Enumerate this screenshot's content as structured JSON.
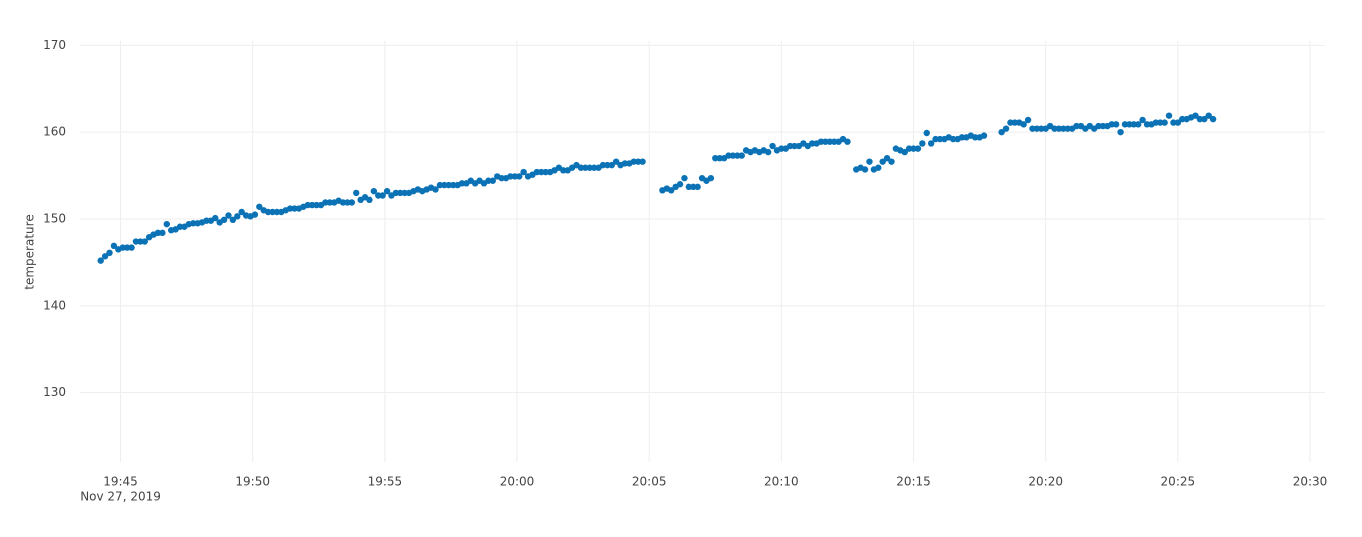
{
  "chart_data": {
    "type": "scatter",
    "y_label": "temperature",
    "x_date_label": "Nov 27, 2019",
    "xlim": [
      "19:43:28",
      "20:30:34"
    ],
    "xticks": [
      "19:45",
      "19:50",
      "19:55",
      "20:00",
      "20:05",
      "20:10",
      "20:15",
      "20:20",
      "20:25",
      "20:30"
    ],
    "ylim": [
      122,
      170.5
    ],
    "yticks": [
      130,
      140,
      150,
      160,
      170
    ],
    "grid": true,
    "color": "#0b72b5",
    "x": [
      "19:44:15",
      "19:44:25",
      "19:44:35",
      "19:44:45",
      "19:44:55",
      "19:45:05",
      "19:45:15",
      "19:45:25",
      "19:45:35",
      "19:45:45",
      "19:45:55",
      "19:46:05",
      "19:46:15",
      "19:46:25",
      "19:46:35",
      "19:46:45",
      "19:46:55",
      "19:47:05",
      "19:47:15",
      "19:47:25",
      "19:47:35",
      "19:47:45",
      "19:47:55",
      "19:48:05",
      "19:48:15",
      "19:48:25",
      "19:48:35",
      "19:48:45",
      "19:48:55",
      "19:49:05",
      "19:49:15",
      "19:49:25",
      "19:49:35",
      "19:49:45",
      "19:49:55",
      "19:50:05",
      "19:50:15",
      "19:50:25",
      "19:50:35",
      "19:50:45",
      "19:50:55",
      "19:51:05",
      "19:51:15",
      "19:51:25",
      "19:51:35",
      "19:51:45",
      "19:51:55",
      "19:52:05",
      "19:52:15",
      "19:52:25",
      "19:52:35",
      "19:52:45",
      "19:52:55",
      "19:53:05",
      "19:53:15",
      "19:53:25",
      "19:53:35",
      "19:53:45",
      "19:53:55",
      "19:54:05",
      "19:54:15",
      "19:54:25",
      "19:54:35",
      "19:54:45",
      "19:54:55",
      "19:55:05",
      "19:55:15",
      "19:55:25",
      "19:55:35",
      "19:55:45",
      "19:55:55",
      "19:56:05",
      "19:56:15",
      "19:56:25",
      "19:56:35",
      "19:56:45",
      "19:56:55",
      "19:57:05",
      "19:57:15",
      "19:57:25",
      "19:57:35",
      "19:57:45",
      "19:57:55",
      "19:58:05",
      "19:58:15",
      "19:58:25",
      "19:58:35",
      "19:58:45",
      "19:58:55",
      "19:59:05",
      "19:59:15",
      "19:59:25",
      "19:59:35",
      "19:59:45",
      "19:59:55",
      "20:00:05",
      "20:00:15",
      "20:00:25",
      "20:00:35",
      "20:00:45",
      "20:00:55",
      "20:01:05",
      "20:01:15",
      "20:01:25",
      "20:01:35",
      "20:01:45",
      "20:01:55",
      "20:02:05",
      "20:02:15",
      "20:02:25",
      "20:02:35",
      "20:02:45",
      "20:02:55",
      "20:03:05",
      "20:03:15",
      "20:03:25",
      "20:03:35",
      "20:03:45",
      "20:03:55",
      "20:04:05",
      "20:04:15",
      "20:04:25",
      "20:04:35",
      "20:04:45",
      "20:05:30",
      "20:05:40",
      "20:05:50",
      "20:06:00",
      "20:06:10",
      "20:06:20",
      "20:06:30",
      "20:06:40",
      "20:06:50",
      "20:07:00",
      "20:07:10",
      "20:07:20",
      "20:07:30",
      "20:07:40",
      "20:07:50",
      "20:08:00",
      "20:08:10",
      "20:08:20",
      "20:08:30",
      "20:08:40",
      "20:08:50",
      "20:09:00",
      "20:09:10",
      "20:09:20",
      "20:09:30",
      "20:09:40",
      "20:09:50",
      "20:10:00",
      "20:10:10",
      "20:10:20",
      "20:10:30",
      "20:10:40",
      "20:10:50",
      "20:11:00",
      "20:11:10",
      "20:11:20",
      "20:11:30",
      "20:11:40",
      "20:11:50",
      "20:12:00",
      "20:12:10",
      "20:12:20",
      "20:12:30",
      "20:12:50",
      "20:13:00",
      "20:13:10",
      "20:13:20",
      "20:13:30",
      "20:13:40",
      "20:13:50",
      "20:14:00",
      "20:14:10",
      "20:14:20",
      "20:14:30",
      "20:14:40",
      "20:14:50",
      "20:15:00",
      "20:15:10",
      "20:15:20",
      "20:15:30",
      "20:15:40",
      "20:15:50",
      "20:16:00",
      "20:16:10",
      "20:16:20",
      "20:16:30",
      "20:16:40",
      "20:16:50",
      "20:17:00",
      "20:17:10",
      "20:17:20",
      "20:17:30",
      "20:17:40",
      "20:18:20",
      "20:18:30",
      "20:18:40",
      "20:18:50",
      "20:19:00",
      "20:19:10",
      "20:19:20",
      "20:19:30",
      "20:19:40",
      "20:19:50",
      "20:20:00",
      "20:20:10",
      "20:20:20",
      "20:20:30",
      "20:20:40",
      "20:20:50",
      "20:21:00",
      "20:21:10",
      "20:21:20",
      "20:21:30",
      "20:21:40",
      "20:21:50",
      "20:22:00",
      "20:22:10",
      "20:22:20",
      "20:22:30",
      "20:22:40",
      "20:22:50",
      "20:23:00",
      "20:23:10",
      "20:23:20",
      "20:23:30",
      "20:23:40",
      "20:23:50",
      "20:24:00",
      "20:24:10",
      "20:24:20",
      "20:24:30",
      "20:24:40",
      "20:24:50",
      "20:25:00",
      "20:25:10",
      "20:25:20",
      "20:25:30",
      "20:25:40",
      "20:25:50",
      "20:26:00",
      "20:26:10",
      "20:26:20"
    ],
    "values": [
      145.2,
      145.7,
      146.1,
      146.9,
      146.5,
      146.7,
      146.7,
      146.7,
      147.4,
      147.4,
      147.4,
      147.9,
      148.2,
      148.4,
      148.4,
      149.4,
      148.7,
      148.8,
      149.1,
      149.1,
      149.4,
      149.5,
      149.5,
      149.6,
      149.8,
      149.8,
      150.1,
      149.6,
      149.9,
      150.4,
      149.9,
      150.3,
      150.8,
      150.4,
      150.3,
      150.5,
      151.4,
      151.0,
      150.8,
      150.8,
      150.8,
      150.8,
      151.0,
      151.2,
      151.2,
      151.2,
      151.4,
      151.6,
      151.6,
      151.6,
      151.6,
      151.9,
      151.9,
      151.9,
      152.1,
      151.9,
      151.9,
      151.9,
      153.0,
      152.2,
      152.5,
      152.2,
      153.2,
      152.7,
      152.7,
      153.2,
      152.7,
      153.0,
      153.0,
      153.0,
      153.0,
      153.2,
      153.4,
      153.2,
      153.4,
      153.6,
      153.4,
      153.9,
      153.9,
      153.9,
      153.9,
      153.9,
      154.1,
      154.1,
      154.4,
      154.1,
      154.4,
      154.1,
      154.4,
      154.4,
      154.9,
      154.7,
      154.7,
      154.9,
      154.9,
      154.9,
      155.4,
      154.9,
      155.1,
      155.4,
      155.4,
      155.4,
      155.4,
      155.6,
      155.9,
      155.6,
      155.6,
      155.9,
      156.2,
      155.9,
      155.9,
      155.9,
      155.9,
      155.9,
      156.2,
      156.2,
      156.2,
      156.6,
      156.2,
      156.4,
      156.4,
      156.6,
      156.6,
      156.6,
      153.3,
      153.5,
      153.3,
      153.7,
      154.0,
      154.7,
      153.7,
      153.7,
      153.7,
      154.7,
      154.4,
      154.7,
      157.0,
      157.0,
      157.0,
      157.3,
      157.3,
      157.3,
      157.3,
      157.9,
      157.7,
      157.9,
      157.7,
      157.9,
      157.7,
      158.4,
      157.9,
      158.1,
      158.1,
      158.4,
      158.4,
      158.4,
      158.7,
      158.4,
      158.7,
      158.7,
      158.9,
      158.9,
      158.9,
      158.9,
      158.9,
      159.2,
      158.9,
      155.7,
      155.9,
      155.7,
      156.6,
      155.7,
      155.9,
      156.6,
      157.0,
      156.6,
      158.1,
      157.9,
      157.7,
      158.1,
      158.1,
      158.1,
      158.7,
      159.9,
      158.7,
      159.2,
      159.2,
      159.2,
      159.4,
      159.2,
      159.2,
      159.4,
      159.4,
      159.6,
      159.4,
      159.4,
      159.6,
      160.0,
      160.4,
      161.1,
      161.1,
      161.1,
      160.9,
      161.4,
      160.4,
      160.4,
      160.4,
      160.4,
      160.7,
      160.4,
      160.4,
      160.4,
      160.4,
      160.4,
      160.7,
      160.7,
      160.4,
      160.7,
      160.4,
      160.7,
      160.7,
      160.7,
      160.9,
      160.9,
      160.0,
      160.9,
      160.9,
      160.9,
      160.9,
      161.4,
      160.9,
      160.9,
      161.1,
      161.1,
      161.1,
      161.9,
      161.1,
      161.1,
      161.5,
      161.5,
      161.7,
      161.9,
      161.5,
      161.5,
      161.9,
      161.5
    ]
  }
}
